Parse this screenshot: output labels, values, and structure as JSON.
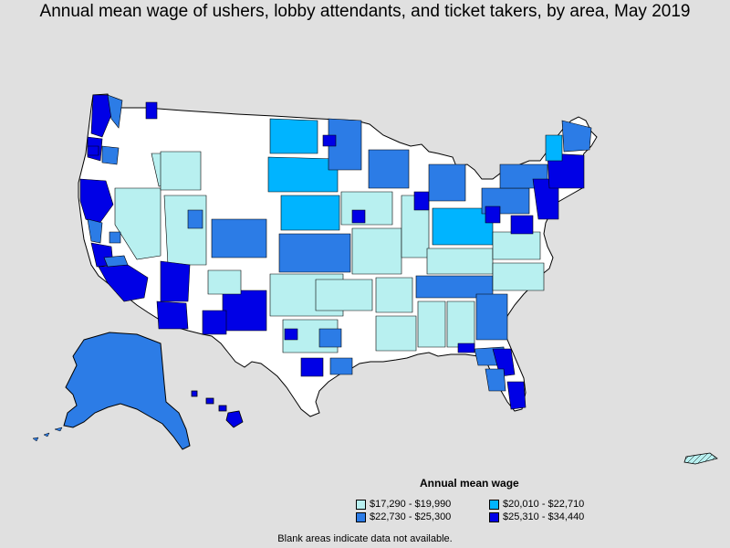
{
  "title": "Annual mean wage of ushers, lobby attendants, and ticket takers, by area, May 2019",
  "legend": {
    "title": "Annual mean wage",
    "items": [
      {
        "label": "$17,290 - $19,990",
        "color": "#b8f0f0"
      },
      {
        "label": "$20,010 - $22,710",
        "color": "#00b4ff"
      },
      {
        "label": "$22,730 - $25,300",
        "color": "#2c7ce6"
      },
      {
        "label": "$25,310 - $34,440",
        "color": "#0000e6"
      }
    ]
  },
  "footnote": "Blank areas indicate data not available.",
  "colors": {
    "background": "#e0e0e0",
    "no_data": "#ffffff",
    "border": "#000000"
  }
}
